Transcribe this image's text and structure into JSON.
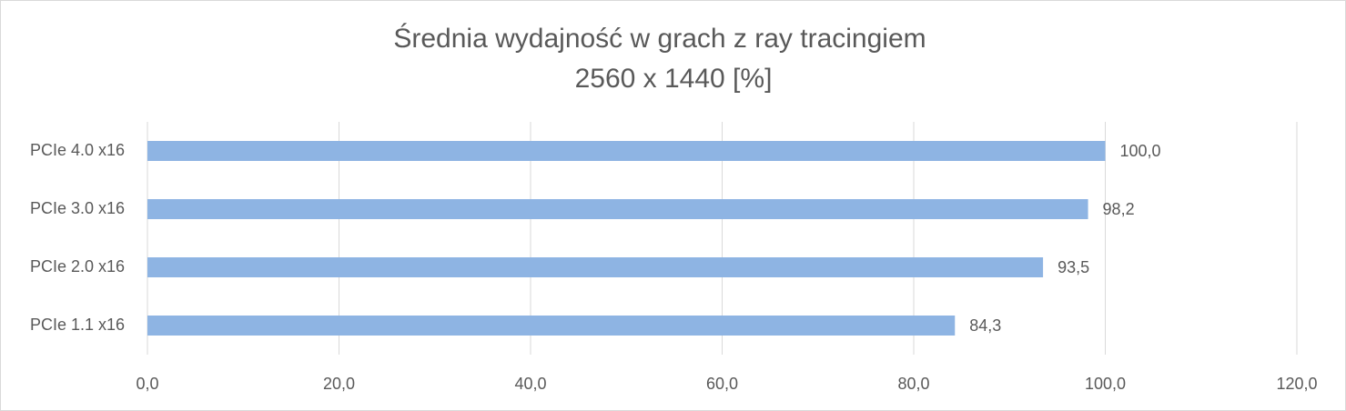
{
  "chart_data": {
    "type": "barh",
    "title": "Średnia wydajność w grach z ray tracingiem",
    "subtitle": "2560 x 1440 [%]",
    "categories": [
      "PCIe 4.0 x16",
      "PCIe 3.0 x16",
      "PCIe 2.0 x16",
      "PCIe 1.1 x16"
    ],
    "values": [
      100.0,
      98.2,
      93.5,
      84.3
    ],
    "value_labels": [
      "100,0",
      "98,2",
      "93,5",
      "84,3"
    ],
    "color": "#8eb4e3",
    "xlim": [
      0,
      120
    ],
    "xticks": [
      {
        "value": 0,
        "label": "0,0"
      },
      {
        "value": 20,
        "label": "20,0"
      },
      {
        "value": 40,
        "label": "40,0"
      },
      {
        "value": 60,
        "label": "60,0"
      },
      {
        "value": 80,
        "label": "80,0"
      },
      {
        "value": 100,
        "label": "100,0"
      },
      {
        "value": 120,
        "label": "120,0"
      }
    ],
    "grid": true
  }
}
